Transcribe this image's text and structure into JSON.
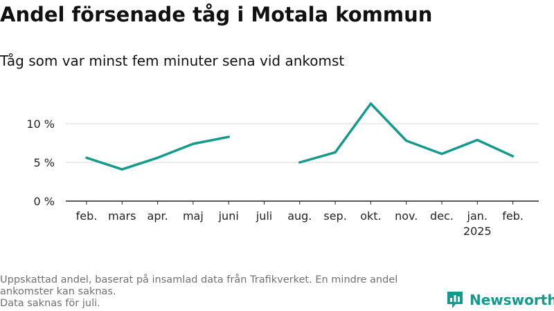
{
  "title": "Andel försenade tåg i Motala kommun",
  "subtitle": "Tåg som var minst fem minuter sena vid ankomst",
  "footer": {
    "line1": "Uppskattad andel, baserat på insamlad data från Trafikverket. En mindre andel ankomster kan saknas.",
    "line2": "Data saknas för juli."
  },
  "brand": {
    "name": "Newsworthy",
    "color": "#149a8c",
    "icon": "newsworthy-logo-icon"
  },
  "chart_data": {
    "type": "line",
    "categories": [
      "feb.",
      "mars",
      "apr.",
      "maj",
      "juni",
      "juli",
      "aug.",
      "sep.",
      "okt.",
      "nov.",
      "dec.",
      "jan.",
      "feb."
    ],
    "category_sublabels": [
      "",
      "",
      "",
      "",
      "",
      "",
      "",
      "",
      "",
      "",
      "",
      "2025",
      ""
    ],
    "series": [
      {
        "values": [
          5.6,
          4.1,
          5.6,
          7.4,
          8.3,
          null,
          5.0,
          6.3,
          12.6,
          7.8,
          6.1,
          7.9,
          5.8
        ],
        "color": "#149a8c"
      }
    ],
    "yticks": [
      0,
      5,
      10
    ],
    "ytick_labels": [
      "0 %",
      "5 %",
      "10 %"
    ],
    "ylim": [
      0,
      13
    ],
    "grid": true,
    "legend": "none"
  }
}
